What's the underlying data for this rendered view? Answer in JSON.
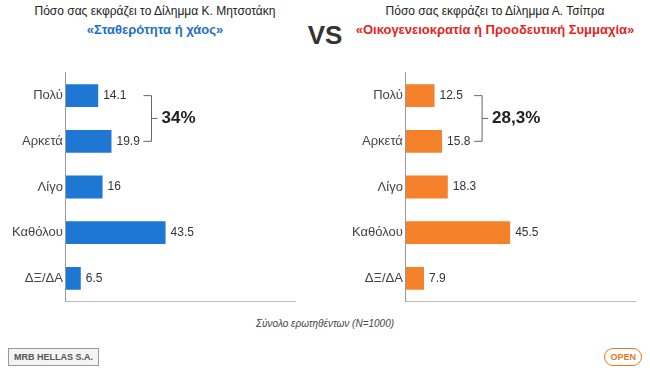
{
  "separator": "VS",
  "footer": "Σύνολο ερωτηθέντων (N=1000)",
  "logos": [
    "MRB HELLAS S.A.",
    "OPEN"
  ],
  "chart_data": [
    {
      "type": "bar",
      "orientation": "horizontal",
      "title": "Πόσο σας εκφράζει το Δίλημμα Κ. Μητσοτάκη",
      "subtitle": "«Σταθερότητα ή χάος»",
      "categories": [
        "Πολύ",
        "Αρκετά",
        "Λίγο",
        "Καθόλου",
        "ΔΞ/ΔΑ"
      ],
      "values": [
        14.1,
        19.9,
        16,
        43.5,
        6.5
      ],
      "color": "#1f77d4",
      "xlim": [
        0,
        100
      ],
      "grid": false,
      "tick_labels": "y",
      "data_labels": true,
      "annotations": [
        {
          "text": "34%",
          "categories": [
            "Πολύ",
            "Αρκετά"
          ]
        }
      ]
    },
    {
      "type": "bar",
      "orientation": "horizontal",
      "title": "Πόσο σας εκφράζει το Δίλημμα Α. Τσίπρα",
      "subtitle": "«Οικογενειοκρατία ή Προοδευτική Συμμαχία»",
      "categories": [
        "Πολύ",
        "Αρκετά",
        "Λίγο",
        "Καθόλου",
        "ΔΞ/ΔΑ"
      ],
      "values": [
        12.5,
        15.8,
        18.3,
        45.5,
        7.9
      ],
      "color": "#f5822a",
      "xlim": [
        0,
        100
      ],
      "grid": false,
      "tick_labels": "y",
      "data_labels": true,
      "annotations": [
        {
          "text": "28,3%",
          "categories": [
            "Πολύ",
            "Αρκετά"
          ]
        }
      ]
    }
  ]
}
